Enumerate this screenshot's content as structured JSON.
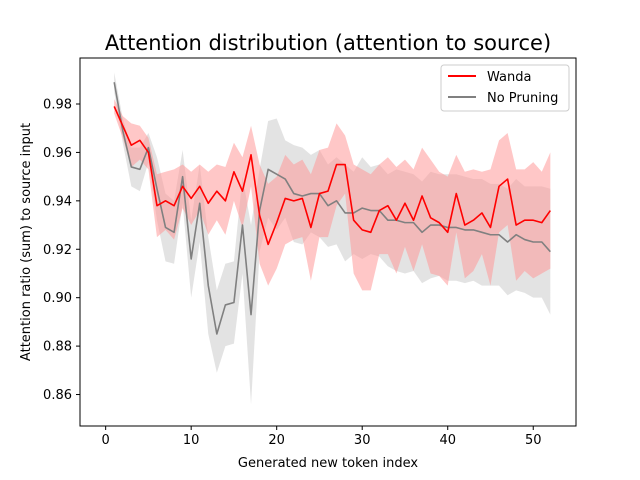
{
  "chart_data": {
    "type": "line",
    "title": "Attention distribution (attention to source)",
    "xlabel": "Generated new token index",
    "ylabel": "Attention ratio (sum) to source input",
    "xlim": [
      -3,
      55
    ],
    "ylim": [
      0.847,
      0.999
    ],
    "xticks": [
      0,
      10,
      20,
      30,
      40,
      50
    ],
    "yticks": [
      0.86,
      0.88,
      0.9,
      0.92,
      0.94,
      0.96,
      0.98
    ],
    "ytick_labels": [
      "0.86",
      "0.88",
      "0.90",
      "0.92",
      "0.94",
      "0.96",
      "0.98"
    ],
    "grid": false,
    "legend_position": "upper right",
    "x": [
      1,
      2,
      3,
      4,
      5,
      6,
      7,
      8,
      9,
      10,
      11,
      12,
      13,
      14,
      15,
      16,
      17,
      18,
      19,
      20,
      21,
      22,
      23,
      24,
      25,
      26,
      27,
      28,
      29,
      30,
      31,
      32,
      33,
      34,
      35,
      36,
      37,
      38,
      39,
      40,
      41,
      42,
      43,
      44,
      45,
      46,
      47,
      48,
      49,
      50,
      51,
      52
    ],
    "series": [
      {
        "name": "Wanda",
        "color": "#ff0000",
        "band_color": "#ff9999",
        "values": [
          0.979,
          0.971,
          0.963,
          0.965,
          0.96,
          0.938,
          0.94,
          0.938,
          0.946,
          0.941,
          0.946,
          0.939,
          0.944,
          0.94,
          0.952,
          0.944,
          0.959,
          0.934,
          0.922,
          0.931,
          0.941,
          0.94,
          0.941,
          0.929,
          0.943,
          0.944,
          0.955,
          0.955,
          0.932,
          0.928,
          0.927,
          0.936,
          0.938,
          0.932,
          0.939,
          0.932,
          0.942,
          0.933,
          0.931,
          0.927,
          0.943,
          0.93,
          0.932,
          0.935,
          0.929,
          0.946,
          0.949,
          0.93,
          0.932,
          0.932,
          0.931,
          0.936
        ],
        "upper": [
          0.982,
          0.975,
          0.972,
          0.971,
          0.966,
          0.951,
          0.952,
          0.953,
          0.955,
          0.952,
          0.955,
          0.952,
          0.955,
          0.954,
          0.964,
          0.958,
          0.971,
          0.955,
          0.947,
          0.95,
          0.959,
          0.955,
          0.957,
          0.951,
          0.961,
          0.962,
          0.972,
          0.967,
          0.955,
          0.953,
          0.951,
          0.955,
          0.958,
          0.954,
          0.957,
          0.953,
          0.962,
          0.957,
          0.952,
          0.95,
          0.959,
          0.952,
          0.953,
          0.952,
          0.953,
          0.965,
          0.968,
          0.953,
          0.953,
          0.956,
          0.952,
          0.96
        ],
        "lower": [
          0.976,
          0.966,
          0.954,
          0.957,
          0.953,
          0.925,
          0.928,
          0.924,
          0.937,
          0.93,
          0.936,
          0.926,
          0.932,
          0.926,
          0.94,
          0.929,
          0.946,
          0.914,
          0.905,
          0.912,
          0.922,
          0.924,
          0.925,
          0.907,
          0.925,
          0.925,
          0.938,
          0.943,
          0.91,
          0.903,
          0.903,
          0.918,
          0.918,
          0.91,
          0.921,
          0.911,
          0.922,
          0.91,
          0.909,
          0.905,
          0.927,
          0.908,
          0.911,
          0.918,
          0.905,
          0.927,
          0.93,
          0.907,
          0.911,
          0.908,
          0.91,
          0.912
        ]
      },
      {
        "name": "No Pruning",
        "color": "#808080",
        "band_color": "#c8c8c8",
        "values": [
          0.989,
          0.969,
          0.954,
          0.953,
          0.962,
          0.945,
          0.929,
          0.927,
          0.95,
          0.916,
          0.939,
          0.905,
          0.885,
          0.897,
          0.898,
          0.93,
          0.893,
          0.936,
          0.953,
          0.951,
          0.949,
          0.943,
          0.942,
          0.943,
          0.943,
          0.938,
          0.94,
          0.935,
          0.935,
          0.937,
          0.936,
          0.936,
          0.932,
          0.932,
          0.931,
          0.931,
          0.927,
          0.93,
          0.93,
          0.929,
          0.929,
          0.928,
          0.928,
          0.927,
          0.926,
          0.926,
          0.923,
          0.926,
          0.924,
          0.923,
          0.923,
          0.919
        ],
        "upper": [
          0.993,
          0.974,
          0.962,
          0.962,
          0.968,
          0.958,
          0.943,
          0.94,
          0.961,
          0.932,
          0.955,
          0.925,
          0.903,
          0.914,
          0.915,
          0.95,
          0.93,
          0.953,
          0.973,
          0.974,
          0.965,
          0.963,
          0.962,
          0.959,
          0.961,
          0.955,
          0.958,
          0.955,
          0.952,
          0.958,
          0.954,
          0.955,
          0.951,
          0.953,
          0.952,
          0.951,
          0.948,
          0.952,
          0.951,
          0.951,
          0.951,
          0.95,
          0.949,
          0.949,
          0.947,
          0.947,
          0.945,
          0.949,
          0.946,
          0.946,
          0.946,
          0.945
        ],
        "lower": [
          0.985,
          0.964,
          0.946,
          0.944,
          0.956,
          0.932,
          0.915,
          0.914,
          0.939,
          0.9,
          0.923,
          0.885,
          0.869,
          0.88,
          0.881,
          0.91,
          0.856,
          0.919,
          0.933,
          0.928,
          0.933,
          0.923,
          0.922,
          0.927,
          0.925,
          0.921,
          0.922,
          0.915,
          0.918,
          0.916,
          0.918,
          0.917,
          0.913,
          0.911,
          0.91,
          0.911,
          0.906,
          0.908,
          0.909,
          0.907,
          0.907,
          0.906,
          0.907,
          0.905,
          0.905,
          0.905,
          0.901,
          0.903,
          0.902,
          0.9,
          0.9,
          0.893
        ]
      }
    ]
  }
}
